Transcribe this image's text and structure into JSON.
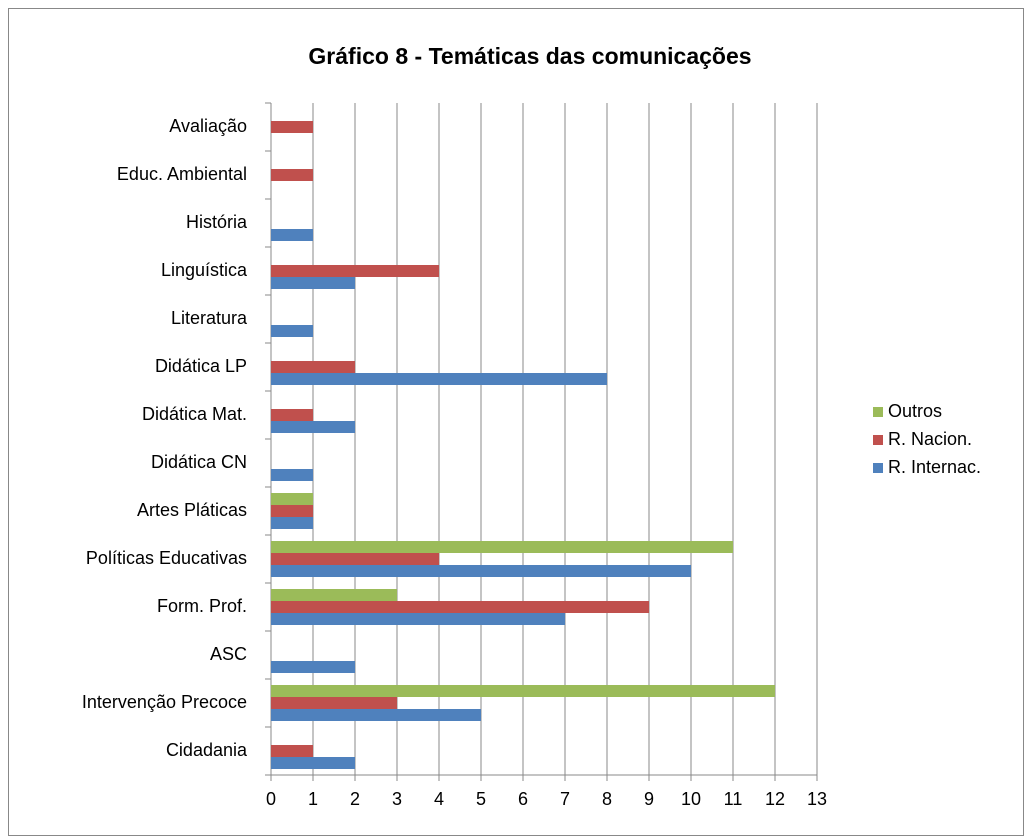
{
  "chart_data": {
    "type": "hbar",
    "title": "Gráfico 8 - Temáticas das comunicações",
    "categories": [
      "Cidadania",
      "Intervenção Precoce",
      "ASC",
      "Form. Prof.",
      "Políticas Educativas",
      "Artes Pláticas",
      "Didática CN",
      "Didática Mat.",
      "Didática LP",
      "Literatura",
      "Linguística",
      "História",
      "Educ. Ambiental",
      "Avaliação"
    ],
    "series": [
      {
        "name": "R. Internac.",
        "color": "#4f81bd",
        "values": [
          2,
          5,
          2,
          7,
          10,
          1,
          1,
          2,
          8,
          1,
          2,
          1,
          0,
          0
        ]
      },
      {
        "name": "R. Nacion.",
        "color": "#c0504d",
        "values": [
          1,
          3,
          0,
          9,
          4,
          1,
          0,
          1,
          2,
          0,
          4,
          0,
          1,
          1
        ]
      },
      {
        "name": "Outros",
        "color": "#9bbb59",
        "values": [
          0,
          12,
          0,
          3,
          11,
          1,
          0,
          0,
          0,
          0,
          0,
          0,
          0,
          0
        ]
      }
    ],
    "xlim": [
      0,
      13
    ],
    "xticks": [
      0,
      1,
      2,
      3,
      4,
      5,
      6,
      7,
      8,
      9,
      10,
      11,
      12,
      13
    ],
    "grid": true,
    "legend": "right"
  }
}
